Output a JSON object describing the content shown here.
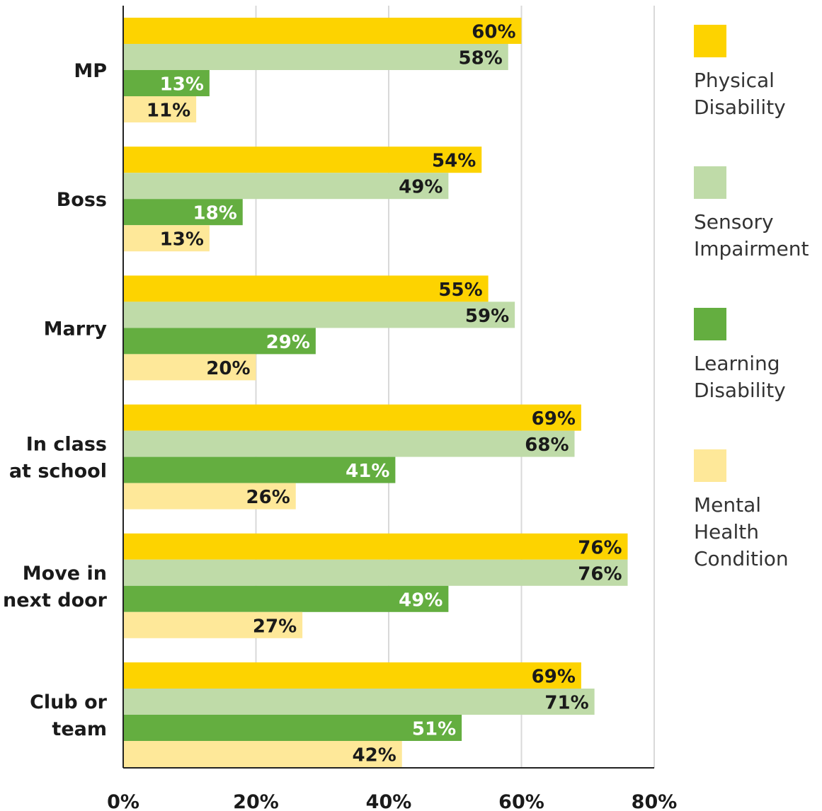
{
  "chart_data": {
    "type": "bar",
    "orientation": "horizontal",
    "title": "",
    "xlabel": "",
    "ylabel": "",
    "categories": [
      "MP",
      "Boss",
      "Marry",
      "In class at school",
      "Move in next door",
      "Club or team"
    ],
    "category_lines": [
      [
        "MP"
      ],
      [
        "Boss"
      ],
      [
        "Marry"
      ],
      [
        "In class",
        "at school"
      ],
      [
        "Move in",
        "next door"
      ],
      [
        "Club or",
        "team"
      ]
    ],
    "series": [
      {
        "name": "Physical Disability",
        "name_lines": [
          "Physical",
          "Disability"
        ],
        "color": "#FDD300",
        "label_color": "#1a1a1a",
        "values": [
          60,
          54,
          55,
          69,
          76,
          69
        ]
      },
      {
        "name": "Sensory Impairment",
        "name_lines": [
          "Sensory",
          "Impairment"
        ],
        "color": "#BFDBA8",
        "label_color": "#1a1a1a",
        "values": [
          58,
          49,
          59,
          68,
          76,
          71
        ]
      },
      {
        "name": "Learning Disability",
        "name_lines": [
          "Learning",
          "Disability"
        ],
        "color": "#64AE40",
        "label_color": "#ffffff",
        "values": [
          13,
          18,
          29,
          41,
          49,
          51
        ]
      },
      {
        "name": "Mental Health Condition",
        "name_lines": [
          "Mental",
          "Health",
          "Condition"
        ],
        "color": "#FEE899",
        "label_color": "#1a1a1a",
        "values": [
          11,
          13,
          20,
          26,
          27,
          42
        ]
      }
    ],
    "xlim": [
      0,
      80
    ],
    "xticks": [
      0,
      20,
      40,
      60,
      80
    ],
    "tick_labels": [
      "0%",
      "20%",
      "40%",
      "60%",
      "80%"
    ],
    "value_suffix": "%",
    "grid": true,
    "legend_position": "right"
  }
}
